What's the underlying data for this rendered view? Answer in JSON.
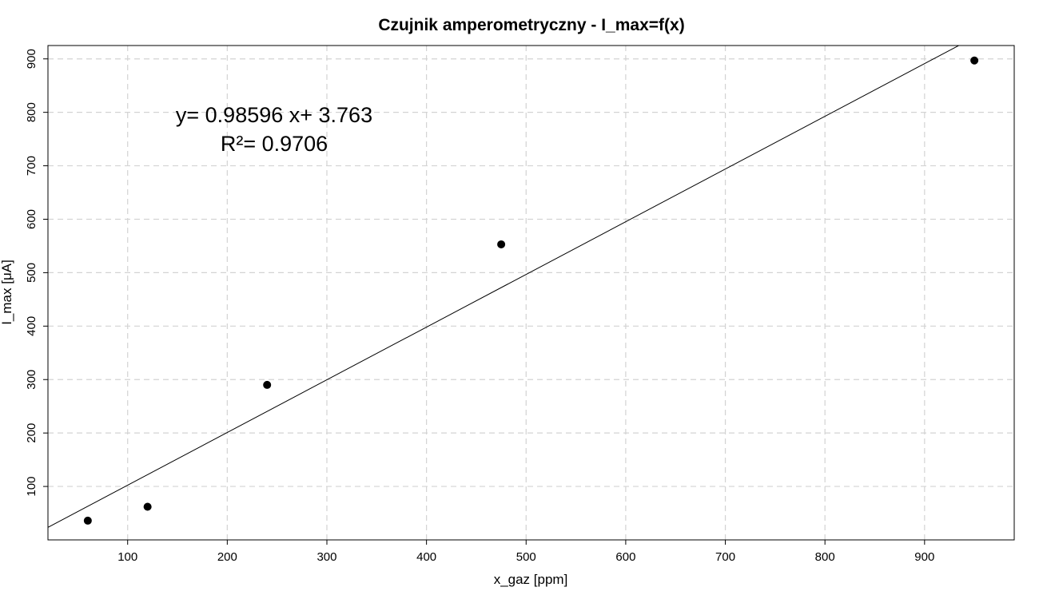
{
  "chart_data": {
    "type": "scatter",
    "title": "Czujnik amperometryczny - I_max=f(x)",
    "xlabel": "x_gaz [ppm]",
    "ylabel": "I_max [μA]",
    "xlim": [
      20,
      990
    ],
    "ylim": [
      0,
      925
    ],
    "xticks": [
      100,
      200,
      300,
      400,
      500,
      600,
      700,
      800,
      900
    ],
    "yticks": [
      100,
      200,
      300,
      400,
      500,
      600,
      700,
      800,
      900
    ],
    "grid": true,
    "legend": "none",
    "series": [
      {
        "x": [
          60,
          120,
          240,
          475,
          950
        ],
        "y": [
          36,
          62,
          290,
          553,
          897
        ],
        "marker": "filled-circle",
        "color": "#000000"
      }
    ],
    "fit_line": {
      "slope": 0.98596,
      "intercept": 3.763,
      "color": "#000000"
    },
    "annotations": {
      "equation": "y= 0.98596 x+ 3.763",
      "r_squared": "R²= 0.9706"
    }
  }
}
